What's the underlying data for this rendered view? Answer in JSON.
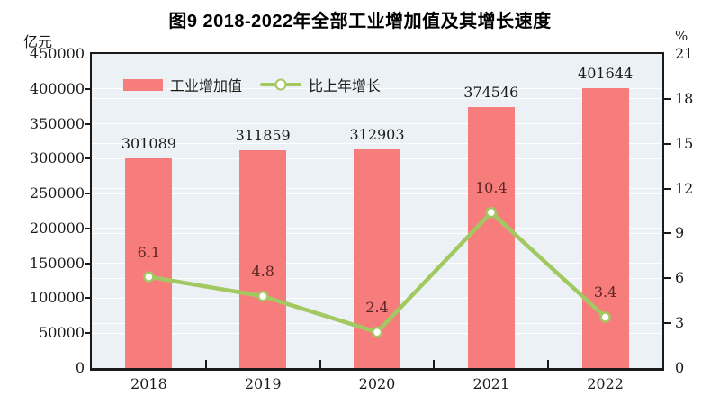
{
  "chart_data": {
    "type": "combo-bar-line",
    "title": "图9  2018-2022年全部工业增加值及其增长速度",
    "categories": [
      "2018",
      "2019",
      "2020",
      "2021",
      "2022"
    ],
    "series": [
      {
        "name": "工业增加值",
        "type": "bar",
        "axis": "left",
        "color": "#F77D7D",
        "label_color": "#1A1A1A",
        "values": [
          301089,
          311859,
          312903,
          374546,
          401644
        ]
      },
      {
        "name": "比上年增长",
        "type": "line",
        "axis": "right",
        "color": "#A2C861",
        "marker_fill": "#FFFFFF",
        "label_color": "#5C2425",
        "values": [
          6.1,
          4.8,
          2.4,
          10.4,
          3.4
        ]
      }
    ],
    "left_axis": {
      "unit": "亿元",
      "min": 0,
      "max": 450000,
      "step": 50000,
      "tick_labels": [
        "450000",
        "400000",
        "350000",
        "300000",
        "250000",
        "200000",
        "150000",
        "100000",
        "50000",
        "0"
      ]
    },
    "right_axis": {
      "unit": "%",
      "min": 0,
      "max": 21,
      "step": 3,
      "tick_labels": [
        "21",
        "18",
        "15",
        "12",
        "9",
        "6",
        "3",
        "0"
      ]
    },
    "legend_position": "top-inside",
    "grid": true,
    "plot_bg": "#EBF1F4",
    "grid_color": "#FFFFFF",
    "axis_color": "#1A1A1A"
  }
}
